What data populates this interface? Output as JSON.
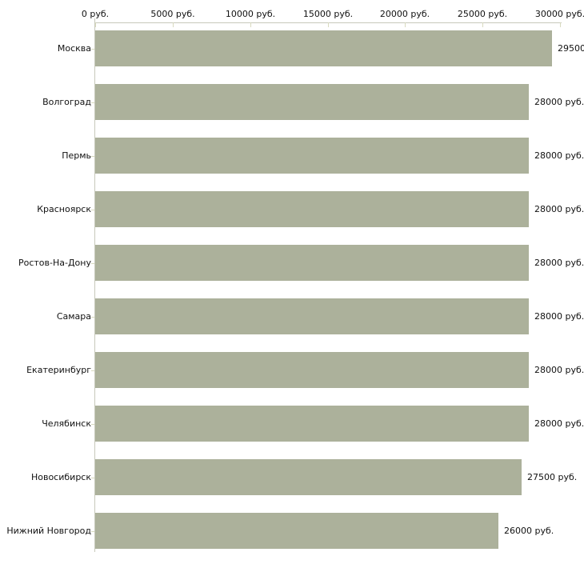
{
  "chart_data": {
    "type": "bar",
    "orientation": "horizontal",
    "categories": [
      "Москва",
      "Волгоград",
      "Пермь",
      "Красноярск",
      "Ростов-На-Дону",
      "Самара",
      "Екатеринбург",
      "Челябинск",
      "Новосибирск",
      "Нижний Новгород"
    ],
    "values": [
      29500,
      28000,
      28000,
      28000,
      28000,
      28000,
      28000,
      28000,
      27500,
      26000
    ],
    "value_labels": [
      "29500",
      "28000 руб.",
      "28000 руб.",
      "28000 руб.",
      "28000 руб.",
      "28000 руб.",
      "28000 руб.",
      "28000 руб.",
      "27500 руб.",
      "26000 руб."
    ],
    "x_axis": {
      "position": "top",
      "min": 0,
      "max": 30000,
      "tick_values": [
        0,
        5000,
        10000,
        15000,
        20000,
        25000,
        30000
      ],
      "tick_labels": [
        "0 руб.",
        "5000 руб.",
        "10000 руб.",
        "15000 руб.",
        "20000 руб.",
        "25000 руб.",
        "30000 руб."
      ]
    },
    "legend": false,
    "grid": false,
    "colors": {
      "bar": "#acb19b",
      "axis_line": "#c7c9bb",
      "tick_mark": "#d8dabf",
      "text": "#111111",
      "background": "#ffffff"
    }
  }
}
